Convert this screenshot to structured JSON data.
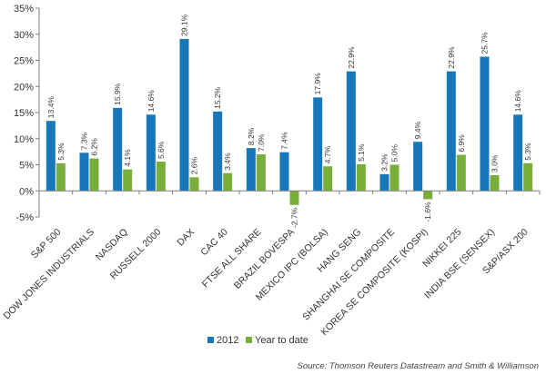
{
  "chart_data": {
    "type": "bar",
    "categories": [
      "S&P 500",
      "DOW JONES INDUSTRIALS",
      "NASDAQ",
      "RUSSELL 2000",
      "DAX",
      "CAC 40",
      "FTSE ALL SHARE",
      "BRAZIL BOVESPA",
      "MEXICO IPC (BOLSA)",
      "HANG SENG",
      "SHANGHAI SE COMPOSITE",
      "KOREA SE COMPOSITE (KOSPI)",
      "NIKKEI 225",
      "INDIA BSE (SENSEX)",
      "S&P/ASX 200"
    ],
    "series": [
      {
        "name": "2012",
        "color": "#1777b8",
        "values": [
          13.4,
          7.3,
          15.9,
          14.6,
          29.1,
          15.2,
          8.2,
          7.4,
          17.9,
          22.9,
          3.2,
          9.4,
          22.9,
          25.7,
          14.6
        ],
        "labels": [
          "13.4%",
          "7.3%",
          "15.9%",
          "14.6%",
          "29.1%",
          "15.2%",
          "8.2%",
          "7.4%",
          "17.9%",
          "22.9%",
          "3.2%",
          "9.4%",
          "22.9%",
          "25.7%",
          "14.6%"
        ]
      },
      {
        "name": "Year to date",
        "color": "#7aae3b",
        "values": [
          5.3,
          6.2,
          4.1,
          5.6,
          2.6,
          3.4,
          7.0,
          -2.7,
          4.7,
          5.1,
          5.0,
          -1.6,
          6.9,
          3.0,
          5.3
        ],
        "labels": [
          "5.3%",
          "6.2%",
          "4.1%",
          "5.6%",
          "2.6%",
          "3.4%",
          "7.0%",
          "-2.7%",
          "4.7%",
          "5.1%",
          "5.0%",
          "-1.6%",
          "6.9%",
          "3.0%",
          "5.3%"
        ]
      }
    ],
    "ylim": [
      -5,
      35
    ],
    "yticks": [
      -5,
      0,
      5,
      10,
      15,
      20,
      25,
      30,
      35
    ],
    "ytick_labels": [
      "-5%",
      "0%",
      "5%",
      "10%",
      "15%",
      "20%",
      "25%",
      "30%",
      "35%"
    ],
    "grid": false,
    "legend_position": "bottom-center"
  },
  "source": "Source: Thomson Reuters Datastream and Smith & Williamson"
}
